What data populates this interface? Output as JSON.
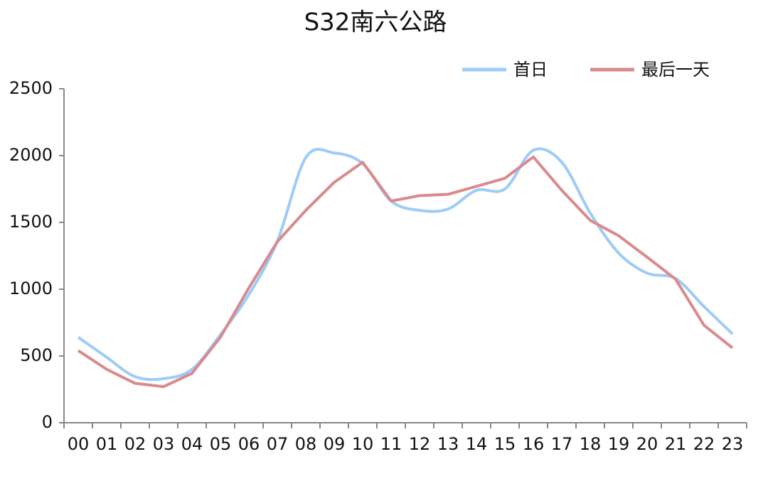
{
  "chart_data": {
    "type": "line",
    "title": "S32南六公路",
    "categories": [
      "00",
      "01",
      "02",
      "03",
      "04",
      "05",
      "06",
      "07",
      "08",
      "09",
      "10",
      "11",
      "12",
      "13",
      "14",
      "15",
      "16",
      "17",
      "18",
      "19",
      "20",
      "21",
      "22",
      "23"
    ],
    "series": [
      {
        "name": "首日",
        "color": "#9ecbf7",
        "smooth": true,
        "values": [
          640,
          490,
          345,
          330,
          400,
          660,
          960,
          1360,
          1985,
          2020,
          1940,
          1660,
          1590,
          1600,
          1740,
          1750,
          2040,
          1950,
          1570,
          1270,
          1120,
          1080,
          870,
          665
        ]
      },
      {
        "name": "最后一天",
        "color": "#d98a8e",
        "smooth": false,
        "values": [
          540,
          400,
          295,
          270,
          370,
          640,
          1010,
          1355,
          1590,
          1800,
          1950,
          1660,
          1700,
          1710,
          1770,
          1830,
          1990,
          1740,
          1515,
          1400,
          1240,
          1075,
          730,
          560
        ]
      }
    ],
    "ylim": [
      0,
      2500
    ],
    "yticks": [
      0,
      500,
      1000,
      1500,
      2000,
      2500
    ],
    "grid": false,
    "legend": "top-right"
  }
}
